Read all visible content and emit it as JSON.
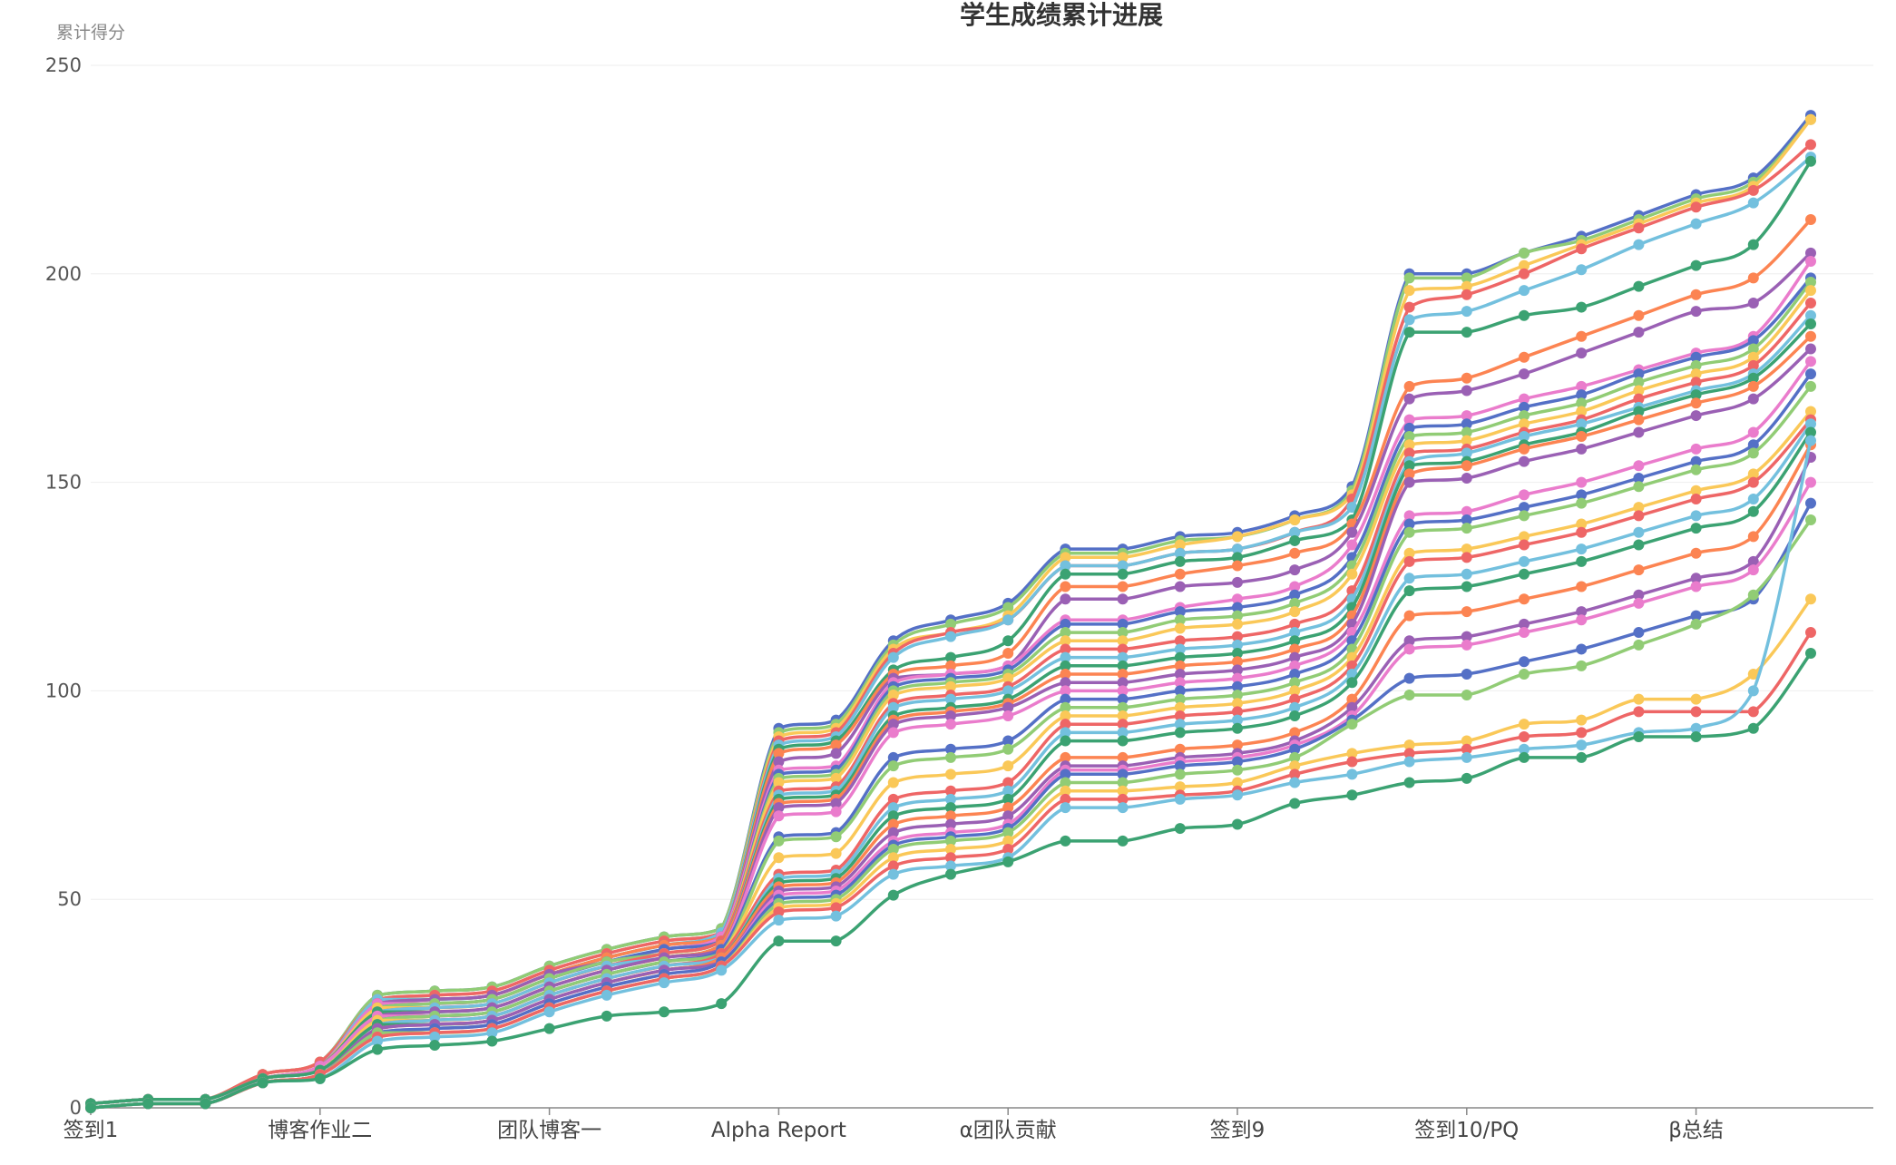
{
  "chart_data": {
    "type": "line",
    "title": "学生成绩累计进展",
    "ylabel": "累计得分",
    "xlabel": "",
    "ylim": [
      0,
      250
    ],
    "yticks": [
      0,
      50,
      100,
      150,
      200,
      250
    ],
    "grid": true,
    "smooth": true,
    "x_tick_labels": [
      {
        "index": 0,
        "label": "签到1"
      },
      {
        "index": 4,
        "label": "博客作业二"
      },
      {
        "index": 8,
        "label": "团队博客一"
      },
      {
        "index": 12,
        "label": "Alpha Report"
      },
      {
        "index": 16,
        "label": "α团队贡献"
      },
      {
        "index": 20,
        "label": "签到9"
      },
      {
        "index": 24,
        "label": "签到10/PQ"
      },
      {
        "index": 28,
        "label": "β总结"
      }
    ],
    "num_points": 31,
    "palette": [
      "#5470c6",
      "#91cc75",
      "#fac858",
      "#ee6666",
      "#73c0de",
      "#3ba272",
      "#fc8452",
      "#9a60b4",
      "#ea7ccc"
    ],
    "series": [
      {
        "values": [
          1,
          2,
          2,
          8,
          11,
          27,
          28,
          29,
          34,
          38,
          41,
          43,
          91,
          93,
          112,
          117,
          121,
          134,
          134,
          137,
          138,
          142,
          149,
          200,
          200,
          205,
          209,
          214,
          219,
          223,
          238
        ]
      },
      {
        "values": [
          1,
          2,
          2,
          8,
          11,
          27,
          28,
          29,
          34,
          38,
          41,
          43,
          90,
          92,
          111,
          116,
          120,
          133,
          133,
          136,
          137,
          141,
          148,
          199,
          199,
          205,
          208,
          213,
          218,
          222,
          237
        ]
      },
      {
        "values": [
          1,
          2,
          2,
          8,
          11,
          26,
          27,
          28,
          33,
          37,
          40,
          42,
          89,
          91,
          110,
          114,
          118,
          132,
          132,
          135,
          137,
          141,
          147,
          196,
          197,
          202,
          207,
          212,
          217,
          221,
          237
        ]
      },
      {
        "values": [
          1,
          2,
          2,
          8,
          11,
          26,
          27,
          28,
          33,
          37,
          40,
          42,
          88,
          90,
          109,
          114,
          117,
          130,
          130,
          133,
          134,
          138,
          146,
          192,
          195,
          200,
          206,
          211,
          216,
          220,
          231
        ]
      },
      {
        "values": [
          1,
          2,
          2,
          7,
          10,
          26,
          26,
          27,
          32,
          36,
          39,
          42,
          87,
          89,
          108,
          113,
          117,
          130,
          130,
          133,
          134,
          138,
          144,
          189,
          191,
          196,
          201,
          207,
          212,
          217,
          228
        ]
      },
      {
        "values": [
          1,
          2,
          2,
          7,
          10,
          25,
          26,
          27,
          32,
          36,
          39,
          41,
          86,
          88,
          105,
          108,
          112,
          128,
          128,
          131,
          132,
          136,
          141,
          186,
          186,
          190,
          192,
          197,
          202,
          207,
          227
        ]
      },
      {
        "values": [
          1,
          2,
          2,
          7,
          10,
          25,
          26,
          27,
          32,
          36,
          39,
          41,
          85,
          87,
          104,
          106,
          109,
          125,
          125,
          128,
          130,
          133,
          140,
          173,
          175,
          180,
          185,
          190,
          195,
          199,
          213
        ]
      },
      {
        "values": [
          1,
          2,
          2,
          7,
          10,
          25,
          26,
          27,
          32,
          35,
          38,
          41,
          83,
          85,
          103,
          104,
          106,
          122,
          122,
          125,
          126,
          129,
          138,
          170,
          172,
          176,
          181,
          186,
          191,
          193,
          205
        ]
      },
      {
        "values": [
          1,
          2,
          2,
          7,
          10,
          25,
          25,
          26,
          31,
          35,
          38,
          41,
          81,
          82,
          102,
          104,
          106,
          117,
          117,
          120,
          122,
          125,
          135,
          165,
          166,
          170,
          173,
          177,
          181,
          185,
          203
        ]
      },
      {
        "values": [
          1,
          2,
          2,
          7,
          10,
          24,
          25,
          26,
          31,
          35,
          38,
          40,
          80,
          81,
          101,
          103,
          105,
          116,
          116,
          119,
          120,
          123,
          132,
          163,
          164,
          168,
          171,
          176,
          180,
          184,
          199
        ]
      },
      {
        "values": [
          1,
          2,
          2,
          7,
          10,
          24,
          25,
          26,
          31,
          35,
          37,
          40,
          79,
          80,
          100,
          102,
          104,
          114,
          114,
          117,
          118,
          121,
          130,
          161,
          162,
          166,
          169,
          174,
          178,
          182,
          198
        ]
      },
      {
        "values": [
          1,
          2,
          2,
          7,
          10,
          24,
          24,
          25,
          30,
          34,
          37,
          40,
          78,
          79,
          99,
          101,
          103,
          112,
          112,
          115,
          116,
          119,
          128,
          159,
          160,
          164,
          167,
          172,
          176,
          180,
          196
        ]
      },
      {
        "values": [
          1,
          2,
          2,
          7,
          10,
          23,
          24,
          25,
          30,
          34,
          37,
          40,
          76,
          77,
          97,
          99,
          101,
          110,
          110,
          112,
          113,
          116,
          124,
          157,
          158,
          162,
          165,
          170,
          174,
          178,
          193
        ]
      },
      {
        "values": [
          1,
          2,
          2,
          7,
          10,
          23,
          24,
          25,
          30,
          34,
          36,
          39,
          75,
          76,
          96,
          98,
          100,
          108,
          108,
          110,
          111,
          114,
          122,
          155,
          157,
          161,
          164,
          168,
          172,
          176,
          190
        ]
      },
      {
        "values": [
          1,
          2,
          2,
          7,
          10,
          23,
          23,
          24,
          29,
          33,
          36,
          39,
          74,
          75,
          94,
          96,
          98,
          106,
          106,
          108,
          109,
          112,
          120,
          154,
          155,
          159,
          162,
          167,
          171,
          175,
          188
        ]
      },
      {
        "values": [
          1,
          2,
          2,
          7,
          10,
          22,
          23,
          24,
          29,
          33,
          36,
          39,
          73,
          74,
          93,
          95,
          97,
          104,
          104,
          106,
          107,
          110,
          118,
          152,
          154,
          158,
          161,
          165,
          169,
          173,
          185
        ]
      },
      {
        "values": [
          1,
          2,
          2,
          7,
          10,
          22,
          23,
          24,
          29,
          33,
          36,
          38,
          72,
          73,
          92,
          94,
          96,
          102,
          102,
          104,
          105,
          108,
          116,
          150,
          151,
          155,
          158,
          162,
          166,
          170,
          182
        ]
      },
      {
        "values": [
          1,
          2,
          2,
          7,
          10,
          22,
          22,
          23,
          28,
          32,
          35,
          38,
          70,
          71,
          90,
          92,
          94,
          100,
          100,
          102,
          103,
          106,
          114,
          142,
          143,
          147,
          150,
          154,
          158,
          162,
          179
        ]
      },
      {
        "values": [
          1,
          2,
          2,
          7,
          9,
          21,
          22,
          23,
          28,
          32,
          35,
          38,
          65,
          66,
          84,
          86,
          88,
          98,
          98,
          100,
          101,
          104,
          112,
          140,
          141,
          144,
          147,
          151,
          155,
          159,
          176
        ]
      },
      {
        "values": [
          1,
          2,
          2,
          7,
          9,
          21,
          22,
          23,
          28,
          32,
          35,
          37,
          64,
          65,
          82,
          84,
          86,
          96,
          96,
          98,
          99,
          102,
          110,
          138,
          139,
          142,
          145,
          149,
          153,
          157,
          173
        ]
      },
      {
        "values": [
          1,
          2,
          2,
          7,
          9,
          21,
          21,
          22,
          27,
          31,
          34,
          37,
          60,
          61,
          78,
          80,
          82,
          94,
          94,
          96,
          97,
          100,
          108,
          133,
          134,
          137,
          140,
          144,
          148,
          152,
          167
        ]
      },
      {
        "values": [
          1,
          2,
          2,
          7,
          9,
          20,
          21,
          22,
          27,
          31,
          34,
          37,
          56,
          57,
          74,
          76,
          78,
          92,
          92,
          94,
          95,
          98,
          106,
          131,
          132,
          135,
          138,
          142,
          146,
          150,
          165
        ]
      },
      {
        "values": [
          1,
          2,
          2,
          7,
          9,
          20,
          21,
          22,
          27,
          31,
          34,
          36,
          55,
          56,
          72,
          74,
          76,
          90,
          90,
          92,
          93,
          96,
          104,
          127,
          128,
          131,
          134,
          138,
          142,
          146,
          164
        ]
      },
      {
        "values": [
          1,
          2,
          2,
          7,
          9,
          20,
          20,
          21,
          26,
          30,
          33,
          36,
          54,
          55,
          70,
          72,
          74,
          88,
          88,
          90,
          91,
          94,
          102,
          124,
          125,
          128,
          131,
          135,
          139,
          143,
          162
        ]
      },
      {
        "values": [
          0,
          1,
          1,
          6,
          8,
          19,
          20,
          21,
          26,
          30,
          33,
          36,
          53,
          54,
          68,
          70,
          72,
          84,
          84,
          86,
          87,
          90,
          98,
          118,
          119,
          122,
          125,
          129,
          133,
          137,
          159
        ]
      },
      {
        "values": [
          0,
          1,
          1,
          6,
          8,
          19,
          20,
          21,
          26,
          30,
          33,
          35,
          52,
          53,
          66,
          68,
          70,
          82,
          82,
          84,
          85,
          88,
          96,
          112,
          113,
          116,
          119,
          123,
          127,
          131,
          156
        ]
      },
      {
        "values": [
          0,
          1,
          1,
          6,
          8,
          18,
          19,
          20,
          25,
          29,
          32,
          35,
          51,
          52,
          64,
          66,
          68,
          81,
          81,
          83,
          84,
          87,
          94,
          110,
          111,
          114,
          117,
          121,
          125,
          129,
          150
        ]
      },
      {
        "values": [
          0,
          1,
          1,
          6,
          8,
          18,
          19,
          20,
          25,
          29,
          32,
          35,
          50,
          51,
          63,
          65,
          67,
          80,
          80,
          82,
          83,
          86,
          93,
          103,
          104,
          107,
          110,
          114,
          118,
          122,
          145
        ]
      },
      {
        "values": [
          0,
          1,
          1,
          6,
          8,
          18,
          18,
          19,
          24,
          28,
          31,
          34,
          49,
          50,
          62,
          64,
          66,
          78,
          78,
          80,
          81,
          84,
          92,
          99,
          99,
          104,
          106,
          111,
          116,
          123,
          141
        ]
      },
      {
        "values": [
          0,
          1,
          1,
          6,
          8,
          17,
          18,
          19,
          24,
          28,
          31,
          34,
          48,
          49,
          60,
          62,
          64,
          76,
          76,
          77,
          78,
          82,
          85,
          87,
          88,
          92,
          93,
          98,
          98,
          104,
          122
        ]
      },
      {
        "values": [
          0,
          1,
          1,
          6,
          8,
          17,
          18,
          19,
          24,
          28,
          31,
          34,
          47,
          48,
          58,
          60,
          62,
          74,
          74,
          75,
          76,
          80,
          83,
          85,
          86,
          89,
          90,
          95,
          95,
          95,
          114
        ]
      },
      {
        "values": [
          0,
          1,
          1,
          6,
          7,
          16,
          17,
          18,
          23,
          27,
          30,
          33,
          45,
          46,
          56,
          58,
          60,
          72,
          72,
          74,
          75,
          78,
          80,
          83,
          84,
          86,
          87,
          90,
          91,
          100,
          160
        ]
      },
      {
        "values": [
          0,
          1,
          1,
          6,
          7,
          14,
          15,
          16,
          19,
          22,
          23,
          25,
          40,
          40,
          51,
          56,
          59,
          64,
          64,
          67,
          68,
          73,
          75,
          78,
          79,
          84,
          84,
          89,
          89,
          91,
          109
        ]
      }
    ]
  }
}
